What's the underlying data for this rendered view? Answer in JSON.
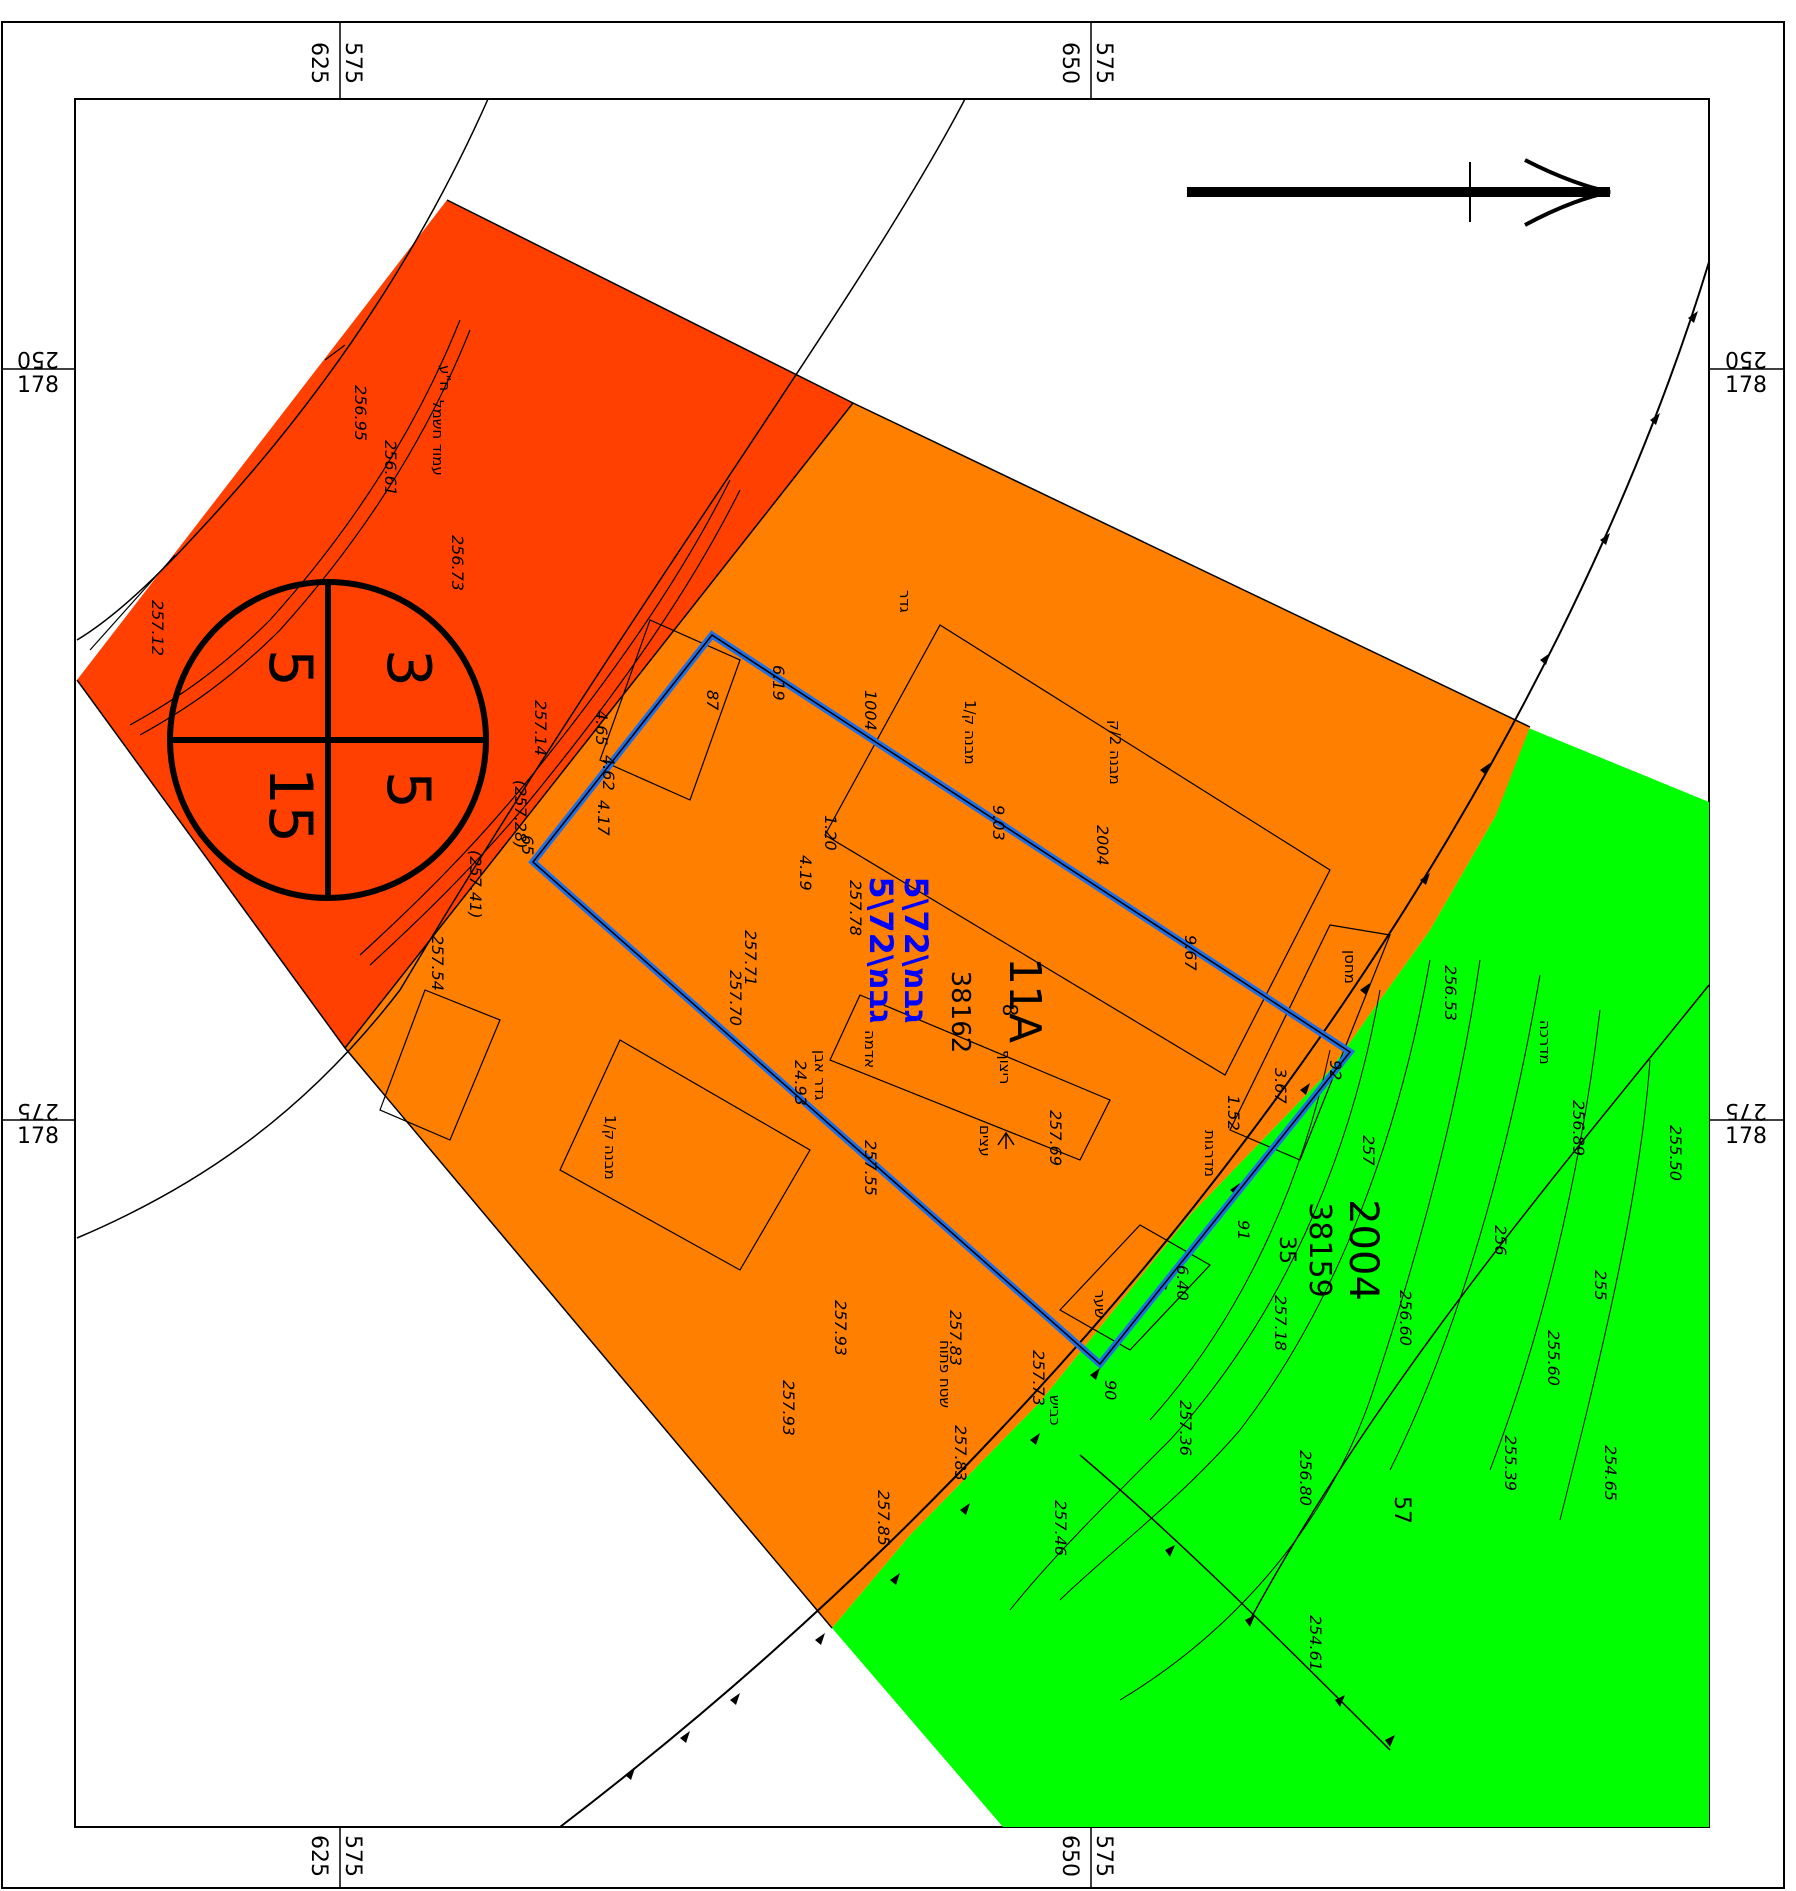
{
  "grid": {
    "top": [
      {
        "a": "625",
        "b": "575"
      },
      {
        "a": "650",
        "b": "575"
      }
    ],
    "bottom": [
      {
        "a": "625",
        "b": "575"
      },
      {
        "a": "650",
        "b": "575"
      }
    ],
    "left": [
      {
        "a": "250",
        "b": "178"
      },
      {
        "a": "275",
        "b": "178"
      }
    ],
    "right": [
      {
        "a": "250",
        "b": "178"
      },
      {
        "a": "275",
        "b": "178"
      }
    ]
  },
  "zoning": {
    "circle": [
      "3",
      "5",
      "5",
      "15"
    ],
    "colors": {
      "red_zone": "#ff4000",
      "orange_zone": "#ff8000",
      "green_zone": "#00ff00",
      "plot_outline": "#1e6ee6",
      "plan_label": "#0000ff"
    }
  },
  "parcels": {
    "main_id": "11A",
    "main_sub": "8",
    "main_block": "38162",
    "east_id": "2004",
    "east_block": "38159",
    "east_sub": "35",
    "east_sub2": "57",
    "plan_ref_1": "5\\גבמ\\72",
    "plan_ref_2": "5\\גבמ\\72"
  },
  "dims": [
    "9.03",
    "9.67",
    "6.19",
    "1004",
    "2004",
    "4.19",
    "1.20",
    "6.40",
    "24.93",
    "65",
    "87",
    "4.65",
    "4.62",
    "4.17",
    "91",
    "92",
    "90",
    "3.67",
    "1.52"
  ],
  "elevations": [
    "257.12",
    "256.95",
    "256.61",
    "256.73",
    "257.14",
    "(257.28)",
    "(257.41)",
    "257.54",
    "257.71",
    "257.70",
    "257.78",
    "257.69",
    "257.55",
    "257.93",
    "257.93",
    "257.83",
    "257.83",
    "257.85",
    "257.73",
    "257.36",
    "257.46",
    "257.18",
    "256.80",
    "256.60",
    "256.53",
    "256.89",
    "255.60",
    "255.39",
    "255.50",
    "254.65",
    "254.61",
    "256.5"
  ],
  "contours": [
    "257",
    "256",
    "255"
  ],
  "hebrew": [
    "מבנה ק/1",
    "מבנה 2/ק",
    "מבנה ק/1",
    "גדר אבן",
    "אדמה",
    "ריצוף",
    "מדרכה",
    "כביש",
    "שטח פתוח",
    "מחסן",
    "עמוד חשמל",
    "מדרגות",
    "גדר",
    "ח\"ע",
    "שער",
    "עצים"
  ]
}
